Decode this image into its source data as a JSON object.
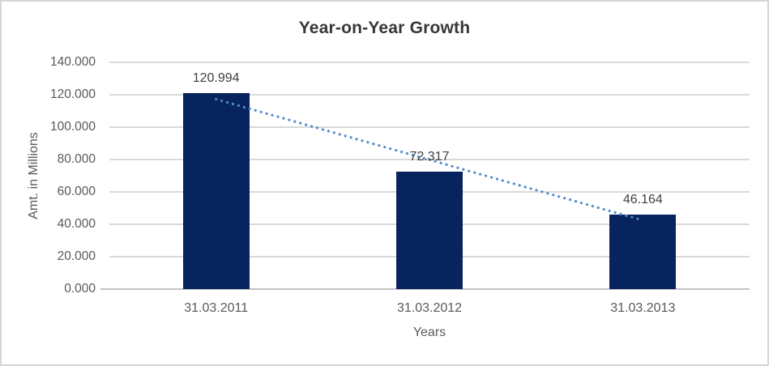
{
  "chart_data": {
    "type": "bar",
    "title": "Year-on-Year Growth",
    "categories": [
      "31.03.2011",
      "31.03.2012",
      "31.03.2013"
    ],
    "values": [
      120.994,
      72.317,
      46.164
    ],
    "value_labels": [
      "120.994",
      "72.317",
      "46.164"
    ],
    "xlabel": "Years",
    "ylabel": "Amt. in Millions",
    "ylim": [
      0,
      140
    ],
    "ytick_step": 20,
    "ytick_labels": [
      "0.000",
      "20.000",
      "40.000",
      "60.000",
      "80.000",
      "100.000",
      "120.000",
      "140.000"
    ],
    "grid": true,
    "legend": "none",
    "trendline": {
      "type": "linear",
      "style": "dotted"
    },
    "colors": {
      "bar": "#08245e",
      "trendline": "#4e8bcc",
      "gridline": "#d9d9d9",
      "axis_line": "#c3c3c3",
      "border": "#d6d6d6",
      "background": "#ffffff",
      "title_text": "#373737",
      "label_text": "#404040",
      "tick_text": "#595959"
    }
  }
}
